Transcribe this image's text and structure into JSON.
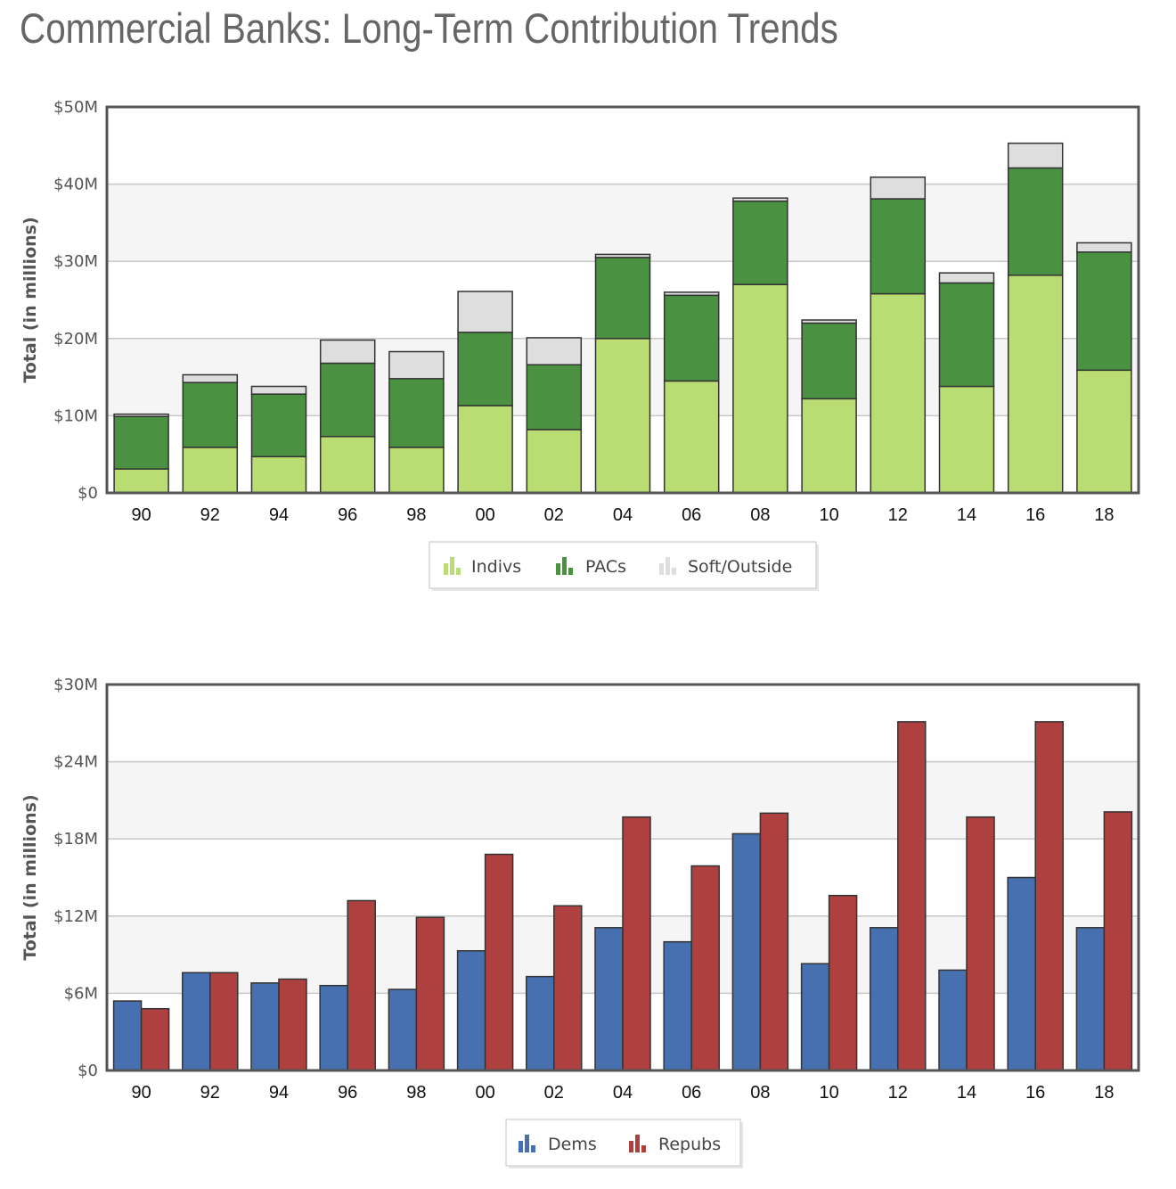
{
  "page": {
    "title": "Commercial Banks: Long-Term Contribution Trends"
  },
  "colors": {
    "indivs": "#b9dc73",
    "pacs": "#4a9141",
    "soft": "#dedede",
    "dems": "#4670b0",
    "repubs": "#ae4140"
  },
  "chart_data": [
    {
      "type": "bar",
      "stacked": true,
      "title": "",
      "ylabel": "Total (in millions)",
      "xlabel": "",
      "ylim": [
        0,
        50
      ],
      "yticks": [
        0,
        10,
        20,
        30,
        40,
        50
      ],
      "ytick_labels": [
        "$0",
        "$10M",
        "$20M",
        "$30M",
        "$40M",
        "$50M"
      ],
      "categories": [
        "90",
        "92",
        "94",
        "96",
        "98",
        "00",
        "02",
        "04",
        "06",
        "08",
        "10",
        "12",
        "14",
        "16",
        "18"
      ],
      "series": [
        {
          "name": "Indivs",
          "color_key": "indivs",
          "icon": "bar-chart-icon",
          "values": [
            3.1,
            5.9,
            4.7,
            7.3,
            5.9,
            11.3,
            8.2,
            20.0,
            14.5,
            27.0,
            12.2,
            25.8,
            13.8,
            28.2,
            15.9
          ]
        },
        {
          "name": "PACs",
          "color_key": "pacs",
          "icon": "bar-chart-icon",
          "values": [
            6.8,
            8.4,
            8.1,
            9.5,
            8.9,
            9.5,
            8.4,
            10.5,
            11.1,
            10.8,
            9.8,
            12.3,
            13.4,
            13.9,
            15.3
          ]
        },
        {
          "name": "Soft/Outside",
          "color_key": "soft",
          "icon": "bar-chart-icon",
          "values": [
            0.3,
            1.0,
            1.0,
            3.0,
            3.5,
            5.3,
            3.5,
            0.4,
            0.4,
            0.4,
            0.4,
            2.8,
            1.3,
            3.2,
            1.2
          ]
        }
      ],
      "grid": true,
      "legend_position": "bottom-center"
    },
    {
      "type": "bar",
      "stacked": false,
      "title": "",
      "ylabel": "Total (in millions)",
      "xlabel": "",
      "ylim": [
        0,
        30
      ],
      "yticks": [
        0,
        6,
        12,
        18,
        24,
        30
      ],
      "ytick_labels": [
        "$0",
        "$6M",
        "$12M",
        "$18M",
        "$24M",
        "$30M"
      ],
      "categories": [
        "90",
        "92",
        "94",
        "96",
        "98",
        "00",
        "02",
        "04",
        "06",
        "08",
        "10",
        "12",
        "14",
        "16",
        "18"
      ],
      "series": [
        {
          "name": "Dems",
          "color_key": "dems",
          "icon": "bar-chart-icon",
          "values": [
            5.4,
            7.6,
            6.8,
            6.6,
            6.3,
            9.3,
            7.3,
            11.1,
            10.0,
            18.4,
            8.3,
            11.1,
            7.8,
            15.0,
            11.1
          ]
        },
        {
          "name": "Repubs",
          "color_key": "repubs",
          "icon": "bar-chart-icon",
          "values": [
            4.8,
            7.6,
            7.1,
            13.2,
            11.9,
            16.8,
            12.8,
            19.7,
            15.9,
            20.0,
            13.6,
            27.1,
            19.7,
            27.1,
            20.1
          ]
        }
      ],
      "grid": true,
      "legend_position": "bottom-center"
    }
  ]
}
